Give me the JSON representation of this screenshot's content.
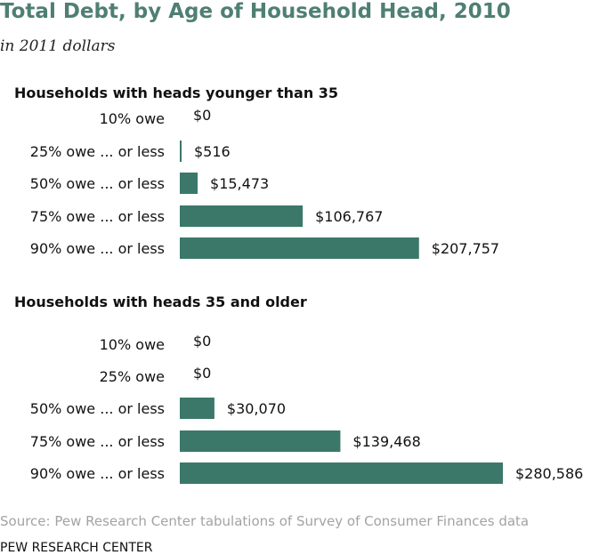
{
  "title": "Total Debt, by Age of Household Head, 2010",
  "subtitle": "in 2011 dollars",
  "source": "Source: Pew Research Center tabulations of Survey of Consumer Finances data",
  "org": "PEW RESEARCH CENTER",
  "colors": {
    "bar": "#3b786a",
    "title": "#4f7f73"
  },
  "chart_data": [
    {
      "type": "bar",
      "orientation": "horizontal",
      "title": "Households with heads younger than 35",
      "categories": [
        "10% owe",
        "25% owe ... or less",
        "50% owe ... or less",
        "75% owe ... or less",
        "90% owe ... or less"
      ],
      "values": [
        0,
        516,
        15473,
        106767,
        207757
      ],
      "value_labels": [
        "$0",
        "$516",
        "$15,473",
        "$106,767",
        "$207,757"
      ]
    },
    {
      "type": "bar",
      "orientation": "horizontal",
      "title": "Households with heads 35 and older",
      "categories": [
        "10% owe",
        "25% owe",
        "50% owe ... or less",
        "75% owe ... or less",
        "90% owe ... or less"
      ],
      "values": [
        0,
        0,
        30070,
        139468,
        280586
      ],
      "value_labels": [
        "$0",
        "$0",
        "$30,070",
        "$139,468",
        "$280,586"
      ]
    }
  ]
}
